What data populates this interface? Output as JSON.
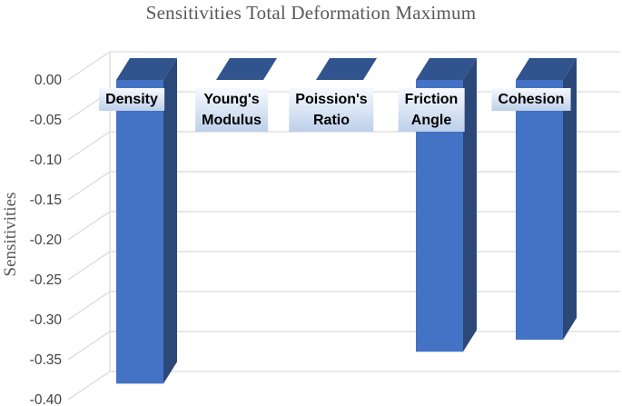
{
  "window": {
    "background": "#FFFFFF"
  },
  "chart_data": {
    "type": "bar",
    "style": "3d-clustered-column",
    "title": "Sensitivities Total Deformation Maximum",
    "xlabel": "",
    "ylabel": "Sensitivities",
    "categories": [
      "Density",
      "Young's\nModulus",
      "Poission's\nRatio",
      "Friction\nAngle",
      "Cohesion"
    ],
    "values": [
      -0.38,
      0,
      0,
      -0.34,
      -0.325
    ],
    "series": [
      {
        "name": "Sensitivities",
        "values": [
          -0.38,
          0,
          0,
          -0.34,
          -0.325
        ]
      }
    ],
    "ylim": [
      -0.4,
      0.0
    ],
    "ytick_interval": 0.05,
    "ytick_labels": [
      "0.00",
      "-0.05",
      "-0.10",
      "-0.15",
      "-0.20",
      "-0.25",
      "-0.30",
      "-0.35",
      "-0.40"
    ],
    "grid": true,
    "legend": false,
    "colors": {
      "bar_front": "#4472C4",
      "bar_top": "#31548F",
      "bar_side": "#2B4879",
      "gridline": "#D9D9D9",
      "title_text": "#595959",
      "tick_text": "#404040",
      "category_label_text": "#000000",
      "category_label_bg_top": "#F6F9FD",
      "category_label_bg_bottom": "#BDCFEA"
    }
  }
}
